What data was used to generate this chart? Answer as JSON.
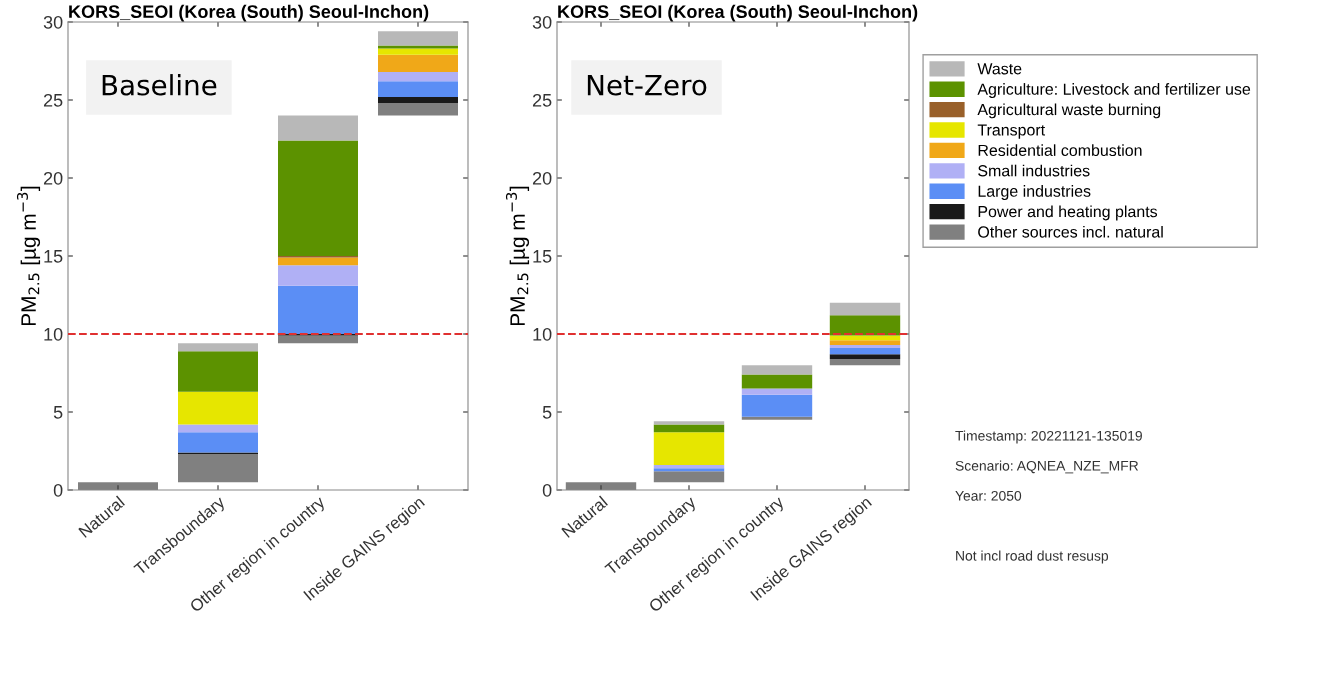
{
  "chart_data": [
    {
      "type": "bar",
      "title": "KORS_SEOI (Korea (South) Seoul-Inchon)",
      "ylabel": "PM$_{2.5}$ [µg m$^{−3}$]",
      "categories": [
        "Natural",
        "Transboundary",
        "Other region in country",
        "Inside GAINS region"
      ],
      "series": [
        {
          "color": "#808080",
          "values": [
            0.5,
            1.8,
            0.5,
            0.8
          ],
          "base": [
            0,
            0.5,
            9.4,
            24.0
          ]
        },
        {
          "color": "#1a1a1a",
          "values": [
            null,
            0.1,
            0.1,
            0.4
          ],
          "base": [
            null,
            2.3,
            9.9,
            24.8
          ]
        },
        {
          "color": "#5b8ef5",
          "values": [
            null,
            1.3,
            3.1,
            1.0
          ],
          "base": [
            null,
            2.4,
            10.0,
            25.2
          ]
        },
        {
          "color": "#b0b0f5",
          "values": [
            null,
            0.5,
            1.3,
            0.6
          ],
          "base": [
            null,
            3.7,
            13.1,
            26.2
          ]
        },
        {
          "color": "#f0a818",
          "values": [
            null,
            null,
            0.5,
            1.1
          ],
          "base": [
            null,
            null,
            14.4,
            26.8
          ]
        },
        {
          "color": "#e6e600",
          "values": [
            null,
            2.1,
            null,
            0.4
          ],
          "base": [
            null,
            4.2,
            null,
            27.9
          ]
        },
        {
          "color": "#99602a",
          "values": [
            null,
            null,
            0.1,
            null
          ],
          "base": [
            null,
            null,
            14.9,
            null
          ]
        },
        {
          "color": "#5c9200",
          "values": [
            null,
            2.6,
            7.4,
            0.2
          ],
          "base": [
            null,
            6.3,
            15.0,
            28.3
          ]
        },
        {
          "color": "#b8b8b8",
          "values": [
            null,
            0.5,
            1.6,
            0.9
          ],
          "base": [
            null,
            8.9,
            22.4,
            28.5
          ]
        }
      ],
      "ylim": [
        0,
        30
      ],
      "yticks": [
        0,
        5,
        10,
        15,
        20,
        25,
        30
      ],
      "ref_lines": [
        {
          "axis": "y",
          "value": 10,
          "color": "#e03030",
          "line_style": "dashed"
        }
      ],
      "annotations": [
        "Baseline"
      ]
    },
    {
      "type": "bar",
      "title": "KORS_SEOI (Korea (South) Seoul-Inchon)",
      "ylabel": "PM$_{2.5}$ [µg m$^{−3}$]",
      "categories": [
        "Natural",
        "Transboundary",
        "Other region in country",
        "Inside GAINS region"
      ],
      "series": [
        {
          "name": "Other sources incl. natural",
          "color": "#808080",
          "values": [
            0.5,
            0.7,
            0.2,
            0.4
          ],
          "base": [
            0,
            0.5,
            4.5,
            8.0
          ]
        },
        {
          "name": "Power and heating plants",
          "color": "#1a1a1a",
          "values": [
            null,
            null,
            null,
            0.3
          ],
          "base": [
            null,
            null,
            null,
            8.4
          ]
        },
        {
          "name": "Large industries",
          "color": "#5b8ef5",
          "values": [
            null,
            0.2,
            1.4,
            0.4
          ],
          "base": [
            null,
            1.2,
            4.7,
            8.7
          ]
        },
        {
          "name": "Small industries",
          "color": "#b0b0f5",
          "values": [
            null,
            0.2,
            0.4,
            0.2
          ],
          "base": [
            null,
            1.4,
            6.1,
            9.1
          ]
        },
        {
          "name": "Residential combustion",
          "color": "#f0a818",
          "values": [
            null,
            null,
            null,
            0.3
          ],
          "base": [
            null,
            null,
            null,
            9.3
          ]
        },
        {
          "name": "Transport",
          "color": "#e6e600",
          "values": [
            null,
            2.1,
            null,
            0.3
          ],
          "base": [
            null,
            1.6,
            null,
            9.6
          ]
        },
        {
          "name": "Agricultural waste burning",
          "color": "#99602a",
          "values": [
            null,
            null,
            null,
            null
          ],
          "base": [
            null,
            null,
            null,
            null
          ]
        },
        {
          "name": "Agriculture: Livestock and fertilizer use",
          "color": "#5c9200",
          "values": [
            null,
            0.5,
            0.9,
            1.3
          ],
          "base": [
            null,
            3.7,
            6.5,
            9.9
          ]
        },
        {
          "name": "Waste",
          "color": "#b8b8b8",
          "values": [
            null,
            0.2,
            0.6,
            0.8
          ],
          "base": [
            null,
            4.2,
            7.4,
            11.2
          ]
        }
      ],
      "ylim": [
        0,
        30
      ],
      "yticks": [
        0,
        5,
        10,
        15,
        20,
        25,
        30
      ],
      "ref_lines": [
        {
          "axis": "y",
          "value": 10,
          "color": "#e03030",
          "line_style": "dashed"
        }
      ],
      "legend": "right",
      "annotations": [
        "Net-Zero",
        "Timestamp: 20221121-135019",
        "Scenario: AQNEA_NZE_MFR",
        "Year: 2050",
        "Not incl road dust resusp"
      ]
    }
  ]
}
